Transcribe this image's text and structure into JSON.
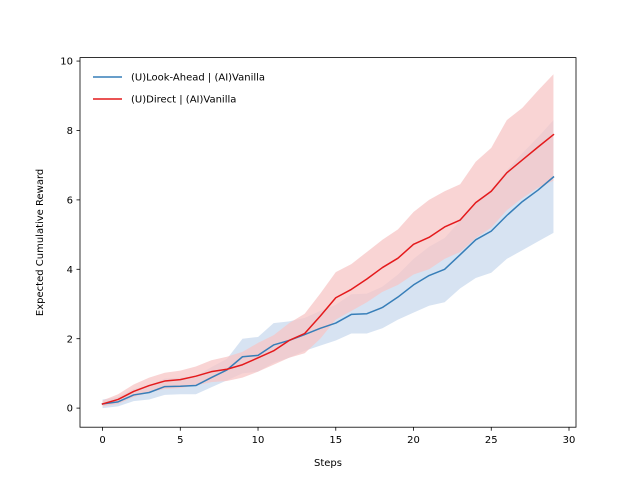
{
  "chart_data": {
    "type": "line",
    "title": "",
    "xlabel": "Steps",
    "ylabel": "Expected Cumulative Reward",
    "xlim": [
      -1.45,
      30.45
    ],
    "ylim": [
      -0.55,
      10.1
    ],
    "xticks": [
      0,
      5,
      10,
      15,
      20,
      25,
      30
    ],
    "xtick_labels": [
      "0",
      "5",
      "10",
      "15",
      "20",
      "25",
      "30"
    ],
    "yticks": [
      0,
      2,
      4,
      6,
      8,
      10
    ],
    "ytick_labels": [
      "0",
      "2",
      "4",
      "6",
      "8",
      "10"
    ],
    "grid": false,
    "legend_position": "upper-left",
    "x": [
      0,
      1,
      2,
      3,
      4,
      5,
      6,
      7,
      8,
      9,
      10,
      11,
      12,
      13,
      14,
      15,
      16,
      17,
      18,
      19,
      20,
      21,
      22,
      23,
      24,
      25,
      26,
      27,
      28,
      29
    ],
    "series": [
      {
        "name": "(U)Look-Ahead | (AI)Vanilla",
        "color": "#377eb8",
        "band_color": "#c9daee",
        "values": [
          0.12,
          0.18,
          0.38,
          0.45,
          0.62,
          0.63,
          0.65,
          0.88,
          1.1,
          1.48,
          1.52,
          1.82,
          1.95,
          2.12,
          2.3,
          2.45,
          2.7,
          2.72,
          2.9,
          3.2,
          3.55,
          3.82,
          4.0,
          4.42,
          4.85,
          5.1,
          5.55,
          5.95,
          6.28,
          6.66
        ],
        "lower": [
          0.0,
          0.05,
          0.2,
          0.25,
          0.38,
          0.4,
          0.4,
          0.6,
          0.8,
          1.0,
          1.05,
          1.3,
          1.45,
          1.65,
          1.8,
          1.95,
          2.15,
          2.15,
          2.3,
          2.55,
          2.75,
          2.95,
          3.05,
          3.45,
          3.75,
          3.9,
          4.3,
          4.55,
          4.8,
          5.05
        ],
        "upper": [
          0.25,
          0.32,
          0.55,
          0.65,
          0.85,
          0.88,
          0.92,
          1.18,
          1.42,
          2.0,
          2.05,
          2.45,
          2.5,
          2.6,
          2.8,
          2.98,
          3.28,
          3.3,
          3.5,
          3.85,
          4.3,
          4.65,
          4.9,
          5.4,
          5.9,
          6.3,
          6.85,
          7.35,
          7.8,
          8.3
        ]
      },
      {
        "name": "(U)Direct | (AI)Vanilla",
        "color": "#e41a1c",
        "band_color": "#f7c6c6",
        "values": [
          0.12,
          0.25,
          0.48,
          0.65,
          0.78,
          0.82,
          0.92,
          1.05,
          1.12,
          1.25,
          1.45,
          1.65,
          1.95,
          2.15,
          2.65,
          3.18,
          3.42,
          3.72,
          4.05,
          4.32,
          4.72,
          4.92,
          5.22,
          5.42,
          5.92,
          6.25,
          6.78,
          7.15,
          7.52,
          7.88
        ],
        "lower": [
          0.05,
          0.12,
          0.32,
          0.45,
          0.55,
          0.58,
          0.65,
          0.75,
          0.78,
          0.88,
          1.05,
          1.25,
          1.45,
          1.58,
          2.0,
          2.55,
          2.8,
          3.05,
          3.35,
          3.55,
          3.85,
          4.0,
          4.3,
          4.5,
          4.9,
          5.2,
          5.7,
          6.05,
          6.35,
          6.55
        ],
        "upper": [
          0.22,
          0.4,
          0.68,
          0.88,
          1.02,
          1.08,
          1.2,
          1.38,
          1.48,
          1.62,
          1.88,
          2.1,
          2.45,
          2.72,
          3.3,
          3.92,
          4.15,
          4.5,
          4.85,
          5.15,
          5.65,
          6.0,
          6.25,
          6.45,
          7.1,
          7.5,
          8.3,
          8.65,
          9.15,
          9.62
        ]
      }
    ]
  }
}
